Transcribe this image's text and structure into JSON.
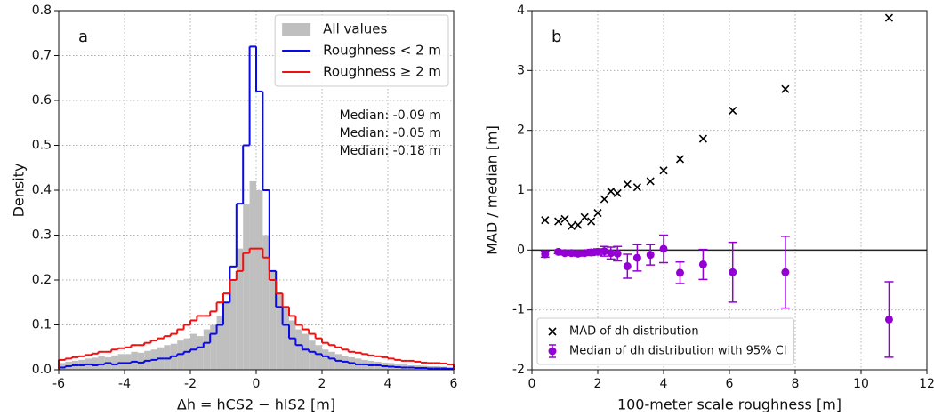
{
  "chart_data": [
    {
      "type": "histogram",
      "xlabel": "Δh = hCS2 − hIS2 [m]",
      "ylabel": "Density",
      "panel_label": "a",
      "xlim": [
        -6,
        6
      ],
      "ylim": [
        0,
        0.8
      ],
      "xticks": [
        -6,
        -4,
        -2,
        0,
        2,
        4,
        6
      ],
      "yticks": [
        {
          "value": 0,
          "label": "0.0"
        },
        0.1,
        0.2,
        0.3,
        0.4,
        0.5,
        0.6,
        0.7,
        0.8
      ],
      "grid": true,
      "legend": "upper right",
      "bins": [
        -6,
        -5.8,
        -5.6,
        -5.4,
        -5.2,
        -5,
        -4.8,
        -4.6,
        -4.4,
        -4.2,
        -4,
        -3.8,
        -3.6,
        -3.4,
        -3.2,
        -3,
        -2.8,
        -2.6,
        -2.4,
        -2.2,
        -2,
        -1.8,
        -1.6,
        -1.4,
        -1.2,
        -1,
        -0.8,
        -0.6,
        -0.4,
        -0.2,
        0,
        0.2,
        0.4,
        0.6,
        0.8,
        1,
        1.2,
        1.4,
        1.6,
        1.8,
        2,
        2.2,
        2.4,
        2.6,
        2.8,
        3,
        3.2,
        3.4,
        3.6,
        3.8,
        4,
        4.2,
        4.4,
        4.6,
        4.8,
        5,
        5.2,
        5.4,
        5.6,
        5.8,
        6
      ],
      "series": [
        {
          "name": "All values",
          "color": "#bfbfbf",
          "histtype": "bar",
          "values": [
            0.015,
            0.018,
            0.02,
            0.022,
            0.025,
            0.027,
            0.03,
            0.028,
            0.032,
            0.035,
            0.035,
            0.04,
            0.038,
            0.042,
            0.045,
            0.05,
            0.055,
            0.058,
            0.065,
            0.07,
            0.08,
            0.075,
            0.09,
            0.1,
            0.12,
            0.15,
            0.2,
            0.27,
            0.37,
            0.42,
            0.4,
            0.3,
            0.22,
            0.17,
            0.14,
            0.11,
            0.09,
            0.08,
            0.065,
            0.055,
            0.045,
            0.04,
            0.035,
            0.03,
            0.028,
            0.025,
            0.022,
            0.02,
            0.018,
            0.016,
            0.015,
            0.013,
            0.012,
            0.01,
            0.01,
            0.009,
            0.008,
            0.008,
            0.007,
            0.006
          ]
        },
        {
          "name": "Roughness < 2 m",
          "color": "#0a0ae6",
          "histtype": "step",
          "values": [
            0.005,
            0.008,
            0.01,
            0.01,
            0.012,
            0.01,
            0.012,
            0.015,
            0.012,
            0.015,
            0.015,
            0.018,
            0.016,
            0.02,
            0.022,
            0.025,
            0.025,
            0.03,
            0.035,
            0.04,
            0.045,
            0.05,
            0.06,
            0.08,
            0.1,
            0.15,
            0.23,
            0.37,
            0.5,
            0.72,
            0.62,
            0.4,
            0.22,
            0.14,
            0.1,
            0.07,
            0.055,
            0.045,
            0.04,
            0.035,
            0.03,
            0.025,
            0.02,
            0.018,
            0.015,
            0.012,
            0.012,
            0.01,
            0.01,
            0.008,
            0.007,
            0.006,
            0.005,
            0.005,
            0.004,
            0.004,
            0.003,
            0.003,
            0.003,
            0.002
          ]
        },
        {
          "name": "Roughness ≥ 2 m",
          "color": "#f01010",
          "histtype": "step",
          "values": [
            0.022,
            0.025,
            0.028,
            0.03,
            0.033,
            0.036,
            0.04,
            0.04,
            0.045,
            0.048,
            0.05,
            0.055,
            0.055,
            0.06,
            0.065,
            0.07,
            0.075,
            0.08,
            0.09,
            0.1,
            0.11,
            0.12,
            0.12,
            0.13,
            0.15,
            0.17,
            0.2,
            0.22,
            0.26,
            0.27,
            0.27,
            0.25,
            0.2,
            0.17,
            0.14,
            0.12,
            0.1,
            0.09,
            0.08,
            0.07,
            0.06,
            0.055,
            0.05,
            0.045,
            0.04,
            0.038,
            0.035,
            0.032,
            0.03,
            0.028,
            0.025,
            0.022,
            0.02,
            0.02,
            0.018,
            0.016,
            0.015,
            0.015,
            0.014,
            0.012
          ]
        }
      ],
      "annotations": [
        {
          "text": "Median: -0.09 m",
          "color": "#111111"
        },
        {
          "text": "Median: -0.05 m",
          "color": "#0a0ae6"
        },
        {
          "text": "Median: -0.18 m",
          "color": "#f01010"
        }
      ]
    },
    {
      "type": "scatter",
      "xlabel": "100-meter scale roughness [m]",
      "ylabel": "MAD / median [m]",
      "panel_label": "b",
      "xlim": [
        0,
        12
      ],
      "ylim": [
        -2,
        4
      ],
      "xticks": [
        0,
        2,
        4,
        6,
        8,
        10,
        12
      ],
      "yticks": [
        -2,
        -1,
        0,
        1,
        2,
        3,
        4
      ],
      "grid": true,
      "legend": "lower left",
      "hline": 0,
      "x": [
        0.4,
        0.8,
        1.0,
        1.2,
        1.4,
        1.6,
        1.8,
        2.0,
        2.2,
        2.4,
        2.6,
        2.9,
        3.2,
        3.6,
        4.0,
        4.5,
        5.2,
        6.1,
        7.7,
        10.85
      ],
      "series": [
        {
          "name": "MAD of dh distribution",
          "color": "#000000",
          "marker": "x",
          "values": [
            0.5,
            0.48,
            0.52,
            0.4,
            0.42,
            0.55,
            0.48,
            0.62,
            0.85,
            0.98,
            0.95,
            1.1,
            1.05,
            1.15,
            1.33,
            1.52,
            1.86,
            2.33,
            2.69,
            3.88
          ]
        },
        {
          "name": "Median of dh distribution with 95% CI",
          "color": "#9400d3",
          "marker": "o",
          "values": [
            -0.07,
            -0.03,
            -0.05,
            -0.05,
            -0.06,
            -0.05,
            -0.04,
            -0.03,
            -0.02,
            -0.05,
            -0.06,
            -0.27,
            -0.13,
            -0.08,
            0.02,
            -0.38,
            -0.24,
            -0.37,
            -0.37,
            -1.16
          ],
          "errors": [
            0.05,
            0.03,
            0.03,
            0.04,
            0.04,
            0.04,
            0.05,
            0.05,
            0.08,
            0.1,
            0.12,
            0.2,
            0.22,
            0.17,
            0.23,
            0.18,
            0.25,
            0.5,
            0.6,
            0.63
          ]
        }
      ]
    }
  ]
}
